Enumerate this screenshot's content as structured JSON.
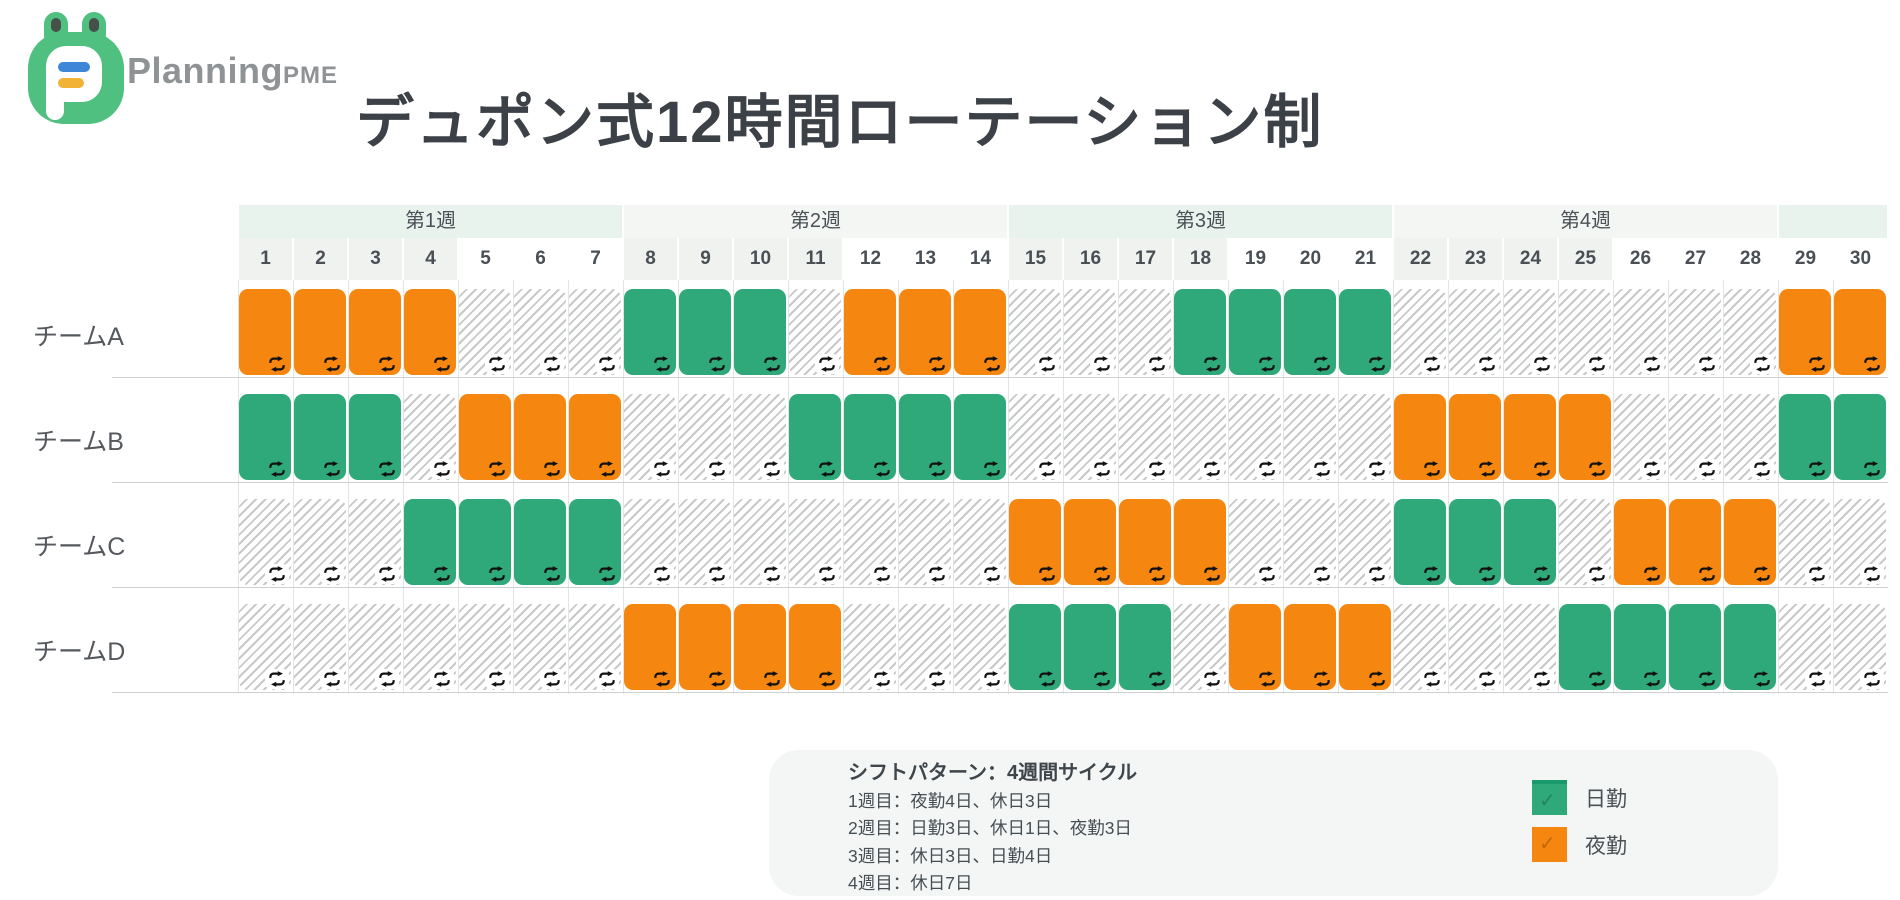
{
  "header": {
    "brand": {
      "name_main": "Planning",
      "name_suffix": "PME"
    },
    "title": "デュポン式12時間ローテーション制"
  },
  "colors": {
    "day": "#2fa87a",
    "night": "#f5860f",
    "rest_stripe": "#c7c9c8",
    "week_band_mint": "#e9f3ee",
    "week_band_gray": "#f4f6f4"
  },
  "schedule": {
    "weeks": [
      {
        "label": "第1週",
        "start": 1,
        "end": 7,
        "tint": "mint"
      },
      {
        "label": "第2週",
        "start": 8,
        "end": 14,
        "tint": "gray"
      },
      {
        "label": "第3週",
        "start": 15,
        "end": 21,
        "tint": "mint"
      },
      {
        "label": "第4週",
        "start": 22,
        "end": 28,
        "tint": "gray"
      },
      {
        "label": "",
        "start": 29,
        "end": 30,
        "tint": "mint"
      }
    ],
    "shaded_days": [
      1,
      2,
      3,
      4,
      8,
      9,
      10,
      11,
      15,
      16,
      17,
      18,
      22,
      23,
      24,
      25
    ]
  },
  "chart_data": {
    "type": "heatmap",
    "title": "デュポン式12時間ローテーション制",
    "x": [
      1,
      2,
      3,
      4,
      5,
      6,
      7,
      8,
      9,
      10,
      11,
      12,
      13,
      14,
      15,
      16,
      17,
      18,
      19,
      20,
      21,
      22,
      23,
      24,
      25,
      26,
      27,
      28,
      29,
      30
    ],
    "x_groups": [
      "第1週",
      "第2週",
      "第3週",
      "第4週"
    ],
    "value_legend": [
      {
        "value": "day",
        "label": "日勤",
        "color": "#2fa87a"
      },
      {
        "value": "night",
        "label": "夜勤",
        "color": "#f5860f"
      },
      {
        "value": "rest",
        "label": "休日",
        "color": "hatched-gray"
      }
    ],
    "rows": [
      {
        "name": "チームA",
        "values": [
          "night",
          "night",
          "night",
          "night",
          "rest",
          "rest",
          "rest",
          "day",
          "day",
          "day",
          "rest",
          "night",
          "night",
          "night",
          "rest",
          "rest",
          "rest",
          "day",
          "day",
          "day",
          "day",
          "rest",
          "rest",
          "rest",
          "rest",
          "rest",
          "rest",
          "rest",
          "night",
          "night"
        ]
      },
      {
        "name": "チームB",
        "values": [
          "day",
          "day",
          "day",
          "rest",
          "night",
          "night",
          "night",
          "rest",
          "rest",
          "rest",
          "day",
          "day",
          "day",
          "day",
          "rest",
          "rest",
          "rest",
          "rest",
          "rest",
          "rest",
          "rest",
          "night",
          "night",
          "night",
          "night",
          "rest",
          "rest",
          "rest",
          "day",
          "day"
        ]
      },
      {
        "name": "チームC",
        "values": [
          "rest",
          "rest",
          "rest",
          "day",
          "day",
          "day",
          "day",
          "rest",
          "rest",
          "rest",
          "rest",
          "rest",
          "rest",
          "rest",
          "night",
          "night",
          "night",
          "night",
          "rest",
          "rest",
          "rest",
          "day",
          "day",
          "day",
          "rest",
          "night",
          "night",
          "night",
          "rest",
          "rest"
        ]
      },
      {
        "name": "チームD",
        "values": [
          "rest",
          "rest",
          "rest",
          "rest",
          "rest",
          "rest",
          "rest",
          "night",
          "night",
          "night",
          "night",
          "rest",
          "rest",
          "rest",
          "day",
          "day",
          "day",
          "rest",
          "night",
          "night",
          "night",
          "rest",
          "rest",
          "rest",
          "day",
          "day",
          "day",
          "day",
          "rest",
          "rest"
        ]
      }
    ]
  },
  "pattern_box": {
    "title": "シフトパターン：4週間サイクル",
    "lines": [
      "1週目：夜勤4日、休日3日",
      "2週目：日勤3日、休日1日、夜勤3日",
      "3週目：休日3日、日勤4日",
      "4週目：休日7日"
    ]
  },
  "legend": [
    {
      "label": "日勤",
      "type": "day"
    },
    {
      "label": "夜勤",
      "type": "night"
    }
  ]
}
